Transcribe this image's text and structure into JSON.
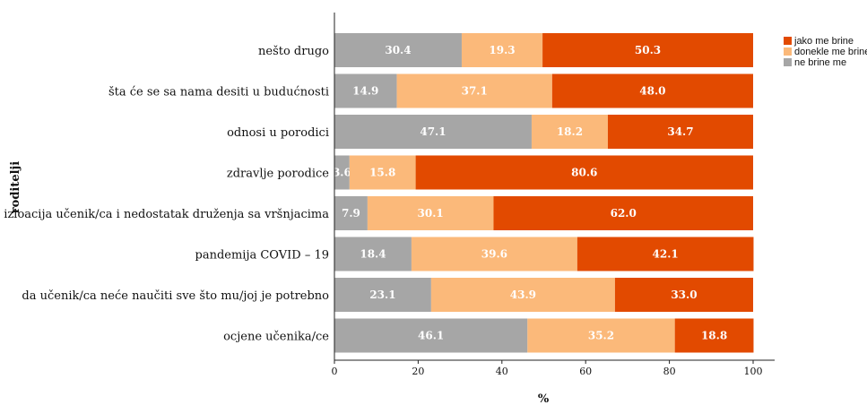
{
  "chart_data": {
    "type": "bar",
    "orientation": "horizontal",
    "stacked": true,
    "title": "",
    "xlabel": "%",
    "ylabel": "roditelji",
    "xlim": [
      0,
      100
    ],
    "x_ticks": [
      "0",
      "20",
      "40",
      "60",
      "80",
      "100"
    ],
    "grid": false,
    "legend_position": "right",
    "categories": [
      "nešto drugo",
      "šta će se sa nama desiti u budućnosti",
      "odnosi u porodici",
      "zdravlje porodice",
      "izloacija učenik/ca i nedostatak druženja sa vršnjacima",
      "pandemija COVID – 19",
      "da učenik/ca neće naučiti sve što mu/joj je potrebno",
      "ocjene učenika/ce"
    ],
    "series": [
      {
        "name": "ne brine me",
        "color": "#a6a6a6",
        "values": [
          30.4,
          14.9,
          47.1,
          3.6,
          7.9,
          18.4,
          23.1,
          46.1
        ],
        "labels": [
          "30.4",
          "14.9",
          "47.1",
          "3.6",
          "7.9",
          "18.4",
          "23.1",
          "46.1"
        ]
      },
      {
        "name": "donekle me brine",
        "color": "#fbb97a",
        "values": [
          19.3,
          37.1,
          18.2,
          15.8,
          30.1,
          39.6,
          43.9,
          35.2
        ],
        "labels": [
          "19.3",
          "37.1",
          "18.2",
          "15.8",
          "30.1",
          "39.6",
          "43.9",
          "35.2"
        ]
      },
      {
        "name": "jako me brine",
        "color": "#e24a00",
        "values": [
          50.3,
          48.0,
          34.7,
          80.6,
          62.0,
          42.1,
          33.0,
          18.8
        ],
        "labels": [
          "50.3",
          "48.0",
          "34.7",
          "80.6",
          "62.0",
          "42.1",
          "33.0",
          "18.8"
        ]
      }
    ],
    "legend_order": [
      "jako me brine",
      "donekle me brine",
      "ne brine me"
    ]
  }
}
